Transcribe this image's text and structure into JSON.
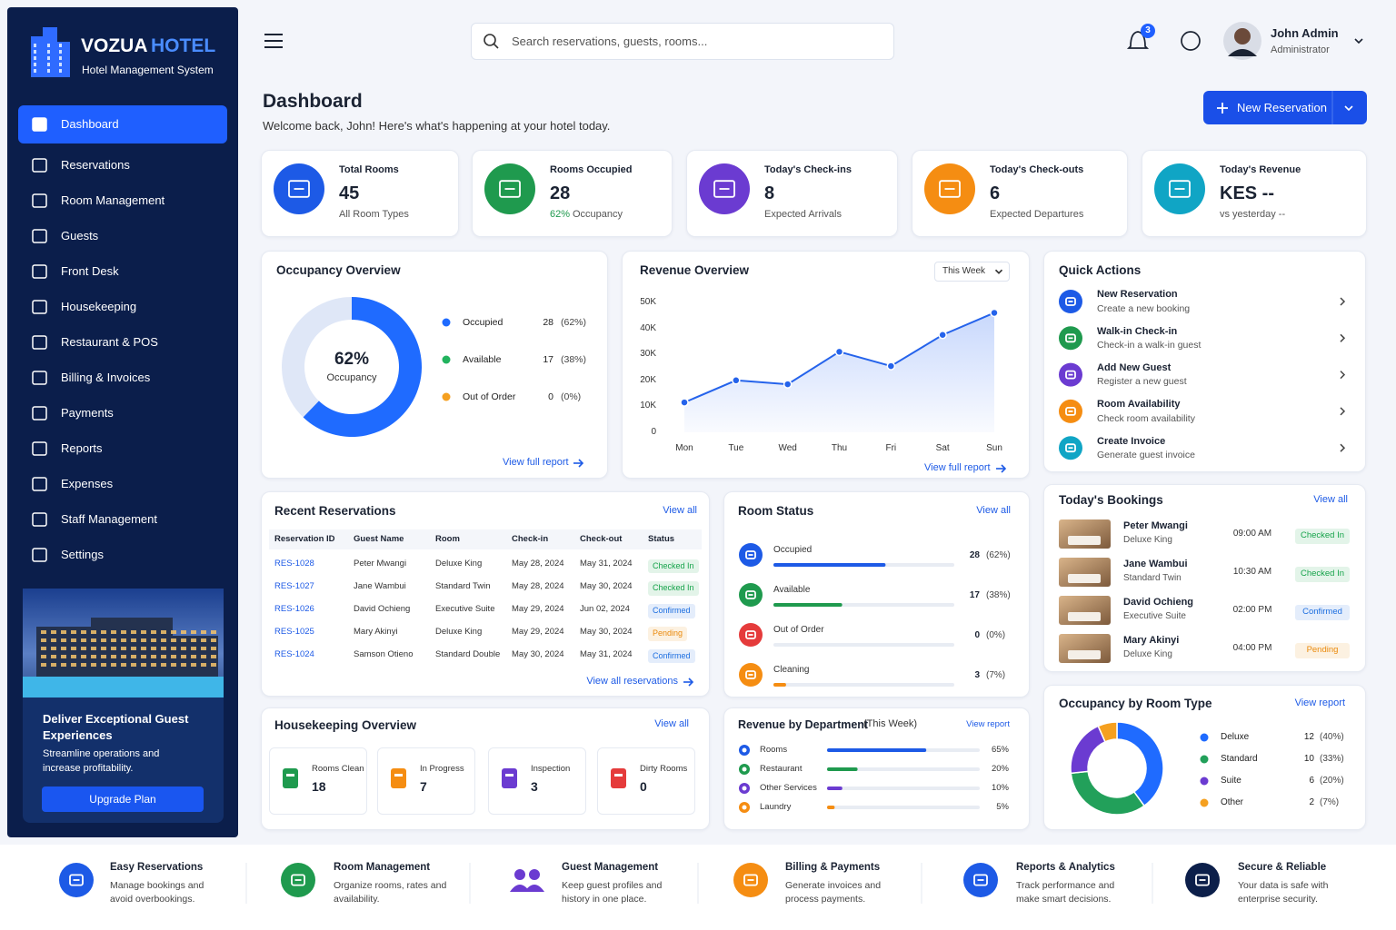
{
  "brand": {
    "name": "VOZUA",
    "accent": "HOTEL",
    "tagline": "Hotel Management System"
  },
  "nav": [
    {
      "label": "Dashboard",
      "active": true
    },
    {
      "label": "Reservations",
      "active": false
    },
    {
      "label": "Room Management",
      "active": false
    },
    {
      "label": "Guests",
      "active": false
    },
    {
      "label": "Front Desk",
      "active": false
    },
    {
      "label": "Housekeeping",
      "active": false
    },
    {
      "label": "Restaurant & POS",
      "active": false
    },
    {
      "label": "Billing & Invoices",
      "active": false
    },
    {
      "label": "Payments",
      "active": false
    },
    {
      "label": "Reports",
      "active": false
    },
    {
      "label": "Expenses",
      "active": false
    },
    {
      "label": "Staff Management",
      "active": false
    },
    {
      "label": "Settings",
      "active": false
    }
  ],
  "promo": {
    "title": "Deliver Exceptional Guest Experiences",
    "text": "Streamline operations and increase profitability.",
    "button": "Upgrade Plan"
  },
  "topbar": {
    "search_placeholder": "Search reservations, guests, rooms...",
    "notifications": 3,
    "user_name": "John Admin",
    "user_role": "Administrator"
  },
  "header": {
    "title": "Dashboard",
    "subtitle": "Welcome back, John! Here's what's happening at your hotel today.",
    "button": "New Reservation"
  },
  "stats": [
    {
      "label": "Total Rooms",
      "value": 45,
      "note": "All Room Types",
      "color": "#1d5ae6"
    },
    {
      "label": "Rooms Occupied",
      "value": 28,
      "highlight": "62%",
      "note": "Occupancy",
      "color": "#1f9a4e"
    },
    {
      "label": "Today's Check-ins",
      "value": 8,
      "note": "Expected Arrivals",
      "color": "#6b3bd1"
    },
    {
      "label": "Today's Check-outs",
      "value": 6,
      "note": "Expected Departures",
      "color": "#f58d12"
    },
    {
      "label": "Today's Revenue",
      "value": "KES --",
      "note": "vs yesterday --",
      "color": "#10a5c5"
    }
  ],
  "chart_data": [
    {
      "type": "donut",
      "title": "Occupancy Overview",
      "center_label": "62%",
      "center_text": "Occupancy",
      "categories": [
        "Occupied",
        "Available",
        "Out of Order"
      ],
      "values": [
        28,
        17,
        0
      ],
      "percent_labels": [
        "(62%)",
        "(38%)",
        "(0%)"
      ],
      "colors": [
        "#1f6bff",
        "#dfe7f7",
        "#dfe7f7"
      ],
      "legend_colors": [
        "#1f6bff",
        "#22b35e",
        "#f5a020"
      ],
      "link": "View full report"
    },
    {
      "type": "line",
      "title": "Revenue Overview",
      "period": "This Week",
      "categories": [
        "Mon",
        "Tue",
        "Wed",
        "Thu",
        "Fri",
        "Sat",
        "Sun"
      ],
      "values": [
        11500,
        20000,
        18500,
        31000,
        25500,
        37500,
        46000
      ],
      "color": "#2563eb",
      "ylim": [
        0,
        50000
      ],
      "yticks": [
        0,
        {
          "value": 10000,
          "label": "10K"
        },
        {
          "value": 20000,
          "label": "20K"
        },
        {
          "value": 30000,
          "label": "30K"
        },
        {
          "value": 40000,
          "label": "40K"
        },
        {
          "value": 50000,
          "label": "50K"
        }
      ],
      "link": "View full report"
    },
    {
      "type": "progress",
      "title": "Room Status",
      "link": "View all",
      "categories": [
        "Occupied",
        "Available",
        "Out of Order",
        "Cleaning"
      ],
      "counts": [
        28,
        17,
        0,
        3
      ],
      "values": [
        62,
        38,
        0,
        7
      ],
      "value_labels": [
        "(62%)",
        "(38%)",
        "(0%)",
        "(7%)"
      ],
      "colors": [
        "#1d5ae6",
        "#1f9a4e",
        "#e53b3b",
        "#f58d12"
      ],
      "xlim": [
        0,
        100
      ]
    },
    {
      "type": "progress",
      "title": "Revenue by Department",
      "subtitle": "(This Week)",
      "link": "View report",
      "categories": [
        "Rooms",
        "Restaurant",
        "Other Services",
        "Laundry"
      ],
      "values": [
        65,
        20,
        10,
        5
      ],
      "value_labels": [
        "65%",
        "20%",
        "10%",
        "5%"
      ],
      "colors": [
        "#1d5ae6",
        "#1f9a4e",
        "#6b3bd1",
        "#f58d12"
      ],
      "xlim": [
        0,
        100
      ]
    },
    {
      "type": "donut",
      "title": "Occupancy by Room Type",
      "link": "View report",
      "categories": [
        "Deluxe",
        "Standard",
        "Suite",
        "Other"
      ],
      "values": [
        12,
        10,
        6,
        2
      ],
      "percent_labels": [
        "(40%)",
        "(33%)",
        "(20%)",
        "(7%)"
      ],
      "colors": [
        "#1f6bff",
        "#22a05a",
        "#6b3bd1",
        "#f5a020"
      ]
    }
  ],
  "quick_actions": {
    "title": "Quick Actions",
    "items": [
      {
        "title": "New Reservation",
        "subtitle": "Create a new booking",
        "color": "#1d5ae6"
      },
      {
        "title": "Walk-in Check-in",
        "subtitle": "Check-in a walk-in guest",
        "color": "#1f9a4e"
      },
      {
        "title": "Add New Guest",
        "subtitle": "Register a new guest",
        "color": "#6b3bd1"
      },
      {
        "title": "Room Availability",
        "subtitle": "Check room availability",
        "color": "#f58d12"
      },
      {
        "title": "Create Invoice",
        "subtitle": "Generate guest invoice",
        "color": "#10a5c5"
      }
    ]
  },
  "recent_reservations": {
    "title": "Recent Reservations",
    "link": "View all",
    "columns": [
      "Reservation ID",
      "Guest Name",
      "Room",
      "Check-in",
      "Check-out",
      "Status"
    ],
    "rows": [
      {
        "id": "RES-1028",
        "guest": "Peter Mwangi",
        "room": "Deluxe King",
        "check_in": "May 28, 2024",
        "check_out": "May 31, 2024",
        "status": "Checked In",
        "status_color": "#16a34a"
      },
      {
        "id": "RES-1027",
        "guest": "Jane Wambui",
        "room": "Standard Twin",
        "check_in": "May 28, 2024",
        "check_out": "May 30, 2024",
        "status": "Checked In",
        "status_color": "#16a34a"
      },
      {
        "id": "RES-1026",
        "guest": "David Ochieng",
        "room": "Executive Suite",
        "check_in": "May 29, 2024",
        "check_out": "Jun 02, 2024",
        "status": "Confirmed",
        "status_color": "#1d6fe0"
      },
      {
        "id": "RES-1025",
        "guest": "Mary Akinyi",
        "room": "Deluxe King",
        "check_in": "May 29, 2024",
        "check_out": "May 30, 2024",
        "status": "Pending",
        "status_color": "#ea8a0c"
      },
      {
        "id": "RES-1024",
        "guest": "Samson Otieno",
        "room": "Standard Double",
        "check_in": "May 30, 2024",
        "check_out": "May 31, 2024",
        "status": "Confirmed",
        "status_color": "#1d6fe0"
      }
    ],
    "footer_link": "View all reservations"
  },
  "todays_bookings": {
    "title": "Today's Bookings",
    "link": "View all",
    "rows": [
      {
        "guest": "Peter Mwangi",
        "room": "Deluxe King",
        "time": "09:00 AM",
        "status": "Checked In",
        "status_color": "#16a34a"
      },
      {
        "guest": "Jane Wambui",
        "room": "Standard Twin",
        "time": "10:30 AM",
        "status": "Checked In",
        "status_color": "#16a34a"
      },
      {
        "guest": "David Ochieng",
        "room": "Executive Suite",
        "time": "02:00 PM",
        "status": "Confirmed",
        "status_color": "#1d6fe0"
      },
      {
        "guest": "Mary Akinyi",
        "room": "Deluxe King",
        "time": "04:00 PM",
        "status": "Pending",
        "status_color": "#ea8a0c"
      }
    ]
  },
  "housekeeping": {
    "title": "Housekeeping Overview",
    "link": "View all",
    "items": [
      {
        "label": "Rooms Clean",
        "value": 18,
        "color": "#1f9a4e"
      },
      {
        "label": "In Progress",
        "value": 7,
        "color": "#f58d12"
      },
      {
        "label": "Inspection",
        "value": 3,
        "color": "#6b3bd1"
      },
      {
        "label": "Dirty Rooms",
        "value": 0,
        "color": "#e53b3b"
      }
    ]
  },
  "features": [
    {
      "title": "Easy Reservations",
      "text": "Manage bookings and avoid overbookings.",
      "color": "#1d5ae6"
    },
    {
      "title": "Room Management",
      "text": "Organize rooms, rates and availability.",
      "color": "#1f9a4e"
    },
    {
      "title": "Guest Management",
      "text": "Keep guest profiles and history in one place.",
      "color": "#6b3bd1"
    },
    {
      "title": "Billing & Payments",
      "text": "Generate invoices and process payments.",
      "color": "#f58d12"
    },
    {
      "title": "Reports & Analytics",
      "text": "Track performance and make smart decisions.",
      "color": "#1d5ae6"
    },
    {
      "title": "Secure & Reliable",
      "text": "Your data is safe with enterprise security.",
      "color": "#0c1f4a"
    }
  ]
}
